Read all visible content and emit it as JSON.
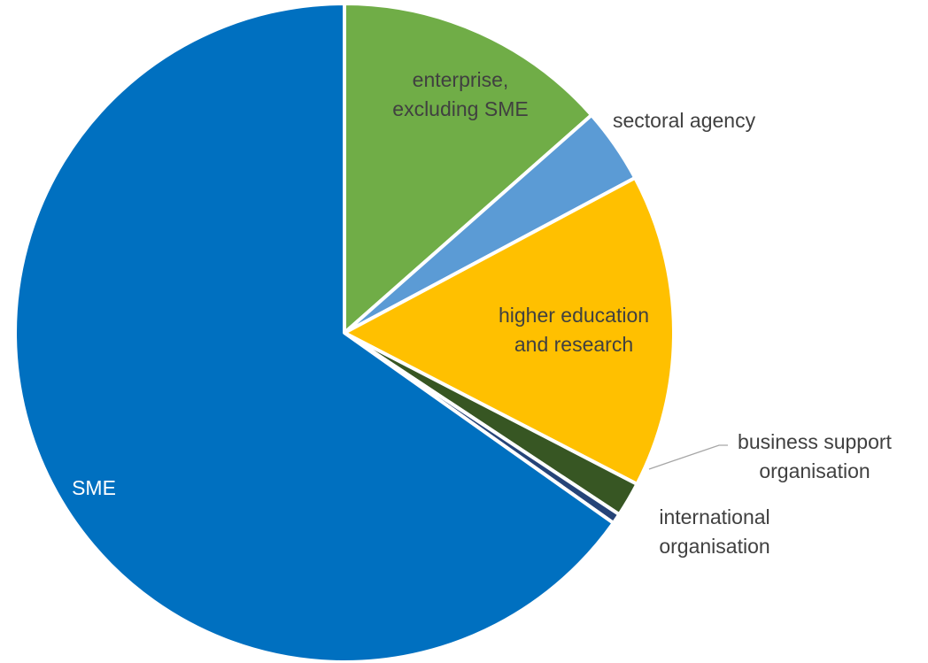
{
  "chart_data": {
    "type": "pie",
    "title": "",
    "start_angle_deg": 0,
    "direction": "clockwise",
    "slices": [
      {
        "label": "enterprise, excluding SME",
        "label_lines": [
          "enterprise,",
          "excluding SME"
        ],
        "value": 13.5,
        "color": "#70AD47",
        "label_color": "#404040",
        "label_position": "inside"
      },
      {
        "label": "sectoral agency",
        "label_lines": [
          "sectoral agency"
        ],
        "value": 3.7,
        "color": "#5B9BD5",
        "label_color": "#404040",
        "label_position": "outside"
      },
      {
        "label": "higher education and research",
        "label_lines": [
          "higher education",
          "and research"
        ],
        "value": 15.4,
        "color": "#FFC000",
        "label_color": "#404040",
        "label_position": "inside"
      },
      {
        "label": "business support organisation",
        "label_lines": [
          "business support",
          "organisation"
        ],
        "value": 1.7,
        "color": "#375623",
        "label_color": "#404040",
        "label_position": "outside-leader"
      },
      {
        "label": "international organisation",
        "label_lines": [
          "international",
          "organisation"
        ],
        "value": 0.5,
        "color": "#264478",
        "label_color": "#404040",
        "label_position": "outside"
      },
      {
        "label": "SME",
        "label_lines": [
          "SME"
        ],
        "value": 65.2,
        "color": "#0070C0",
        "label_color": "#ffffff",
        "label_position": "inside"
      }
    ]
  }
}
